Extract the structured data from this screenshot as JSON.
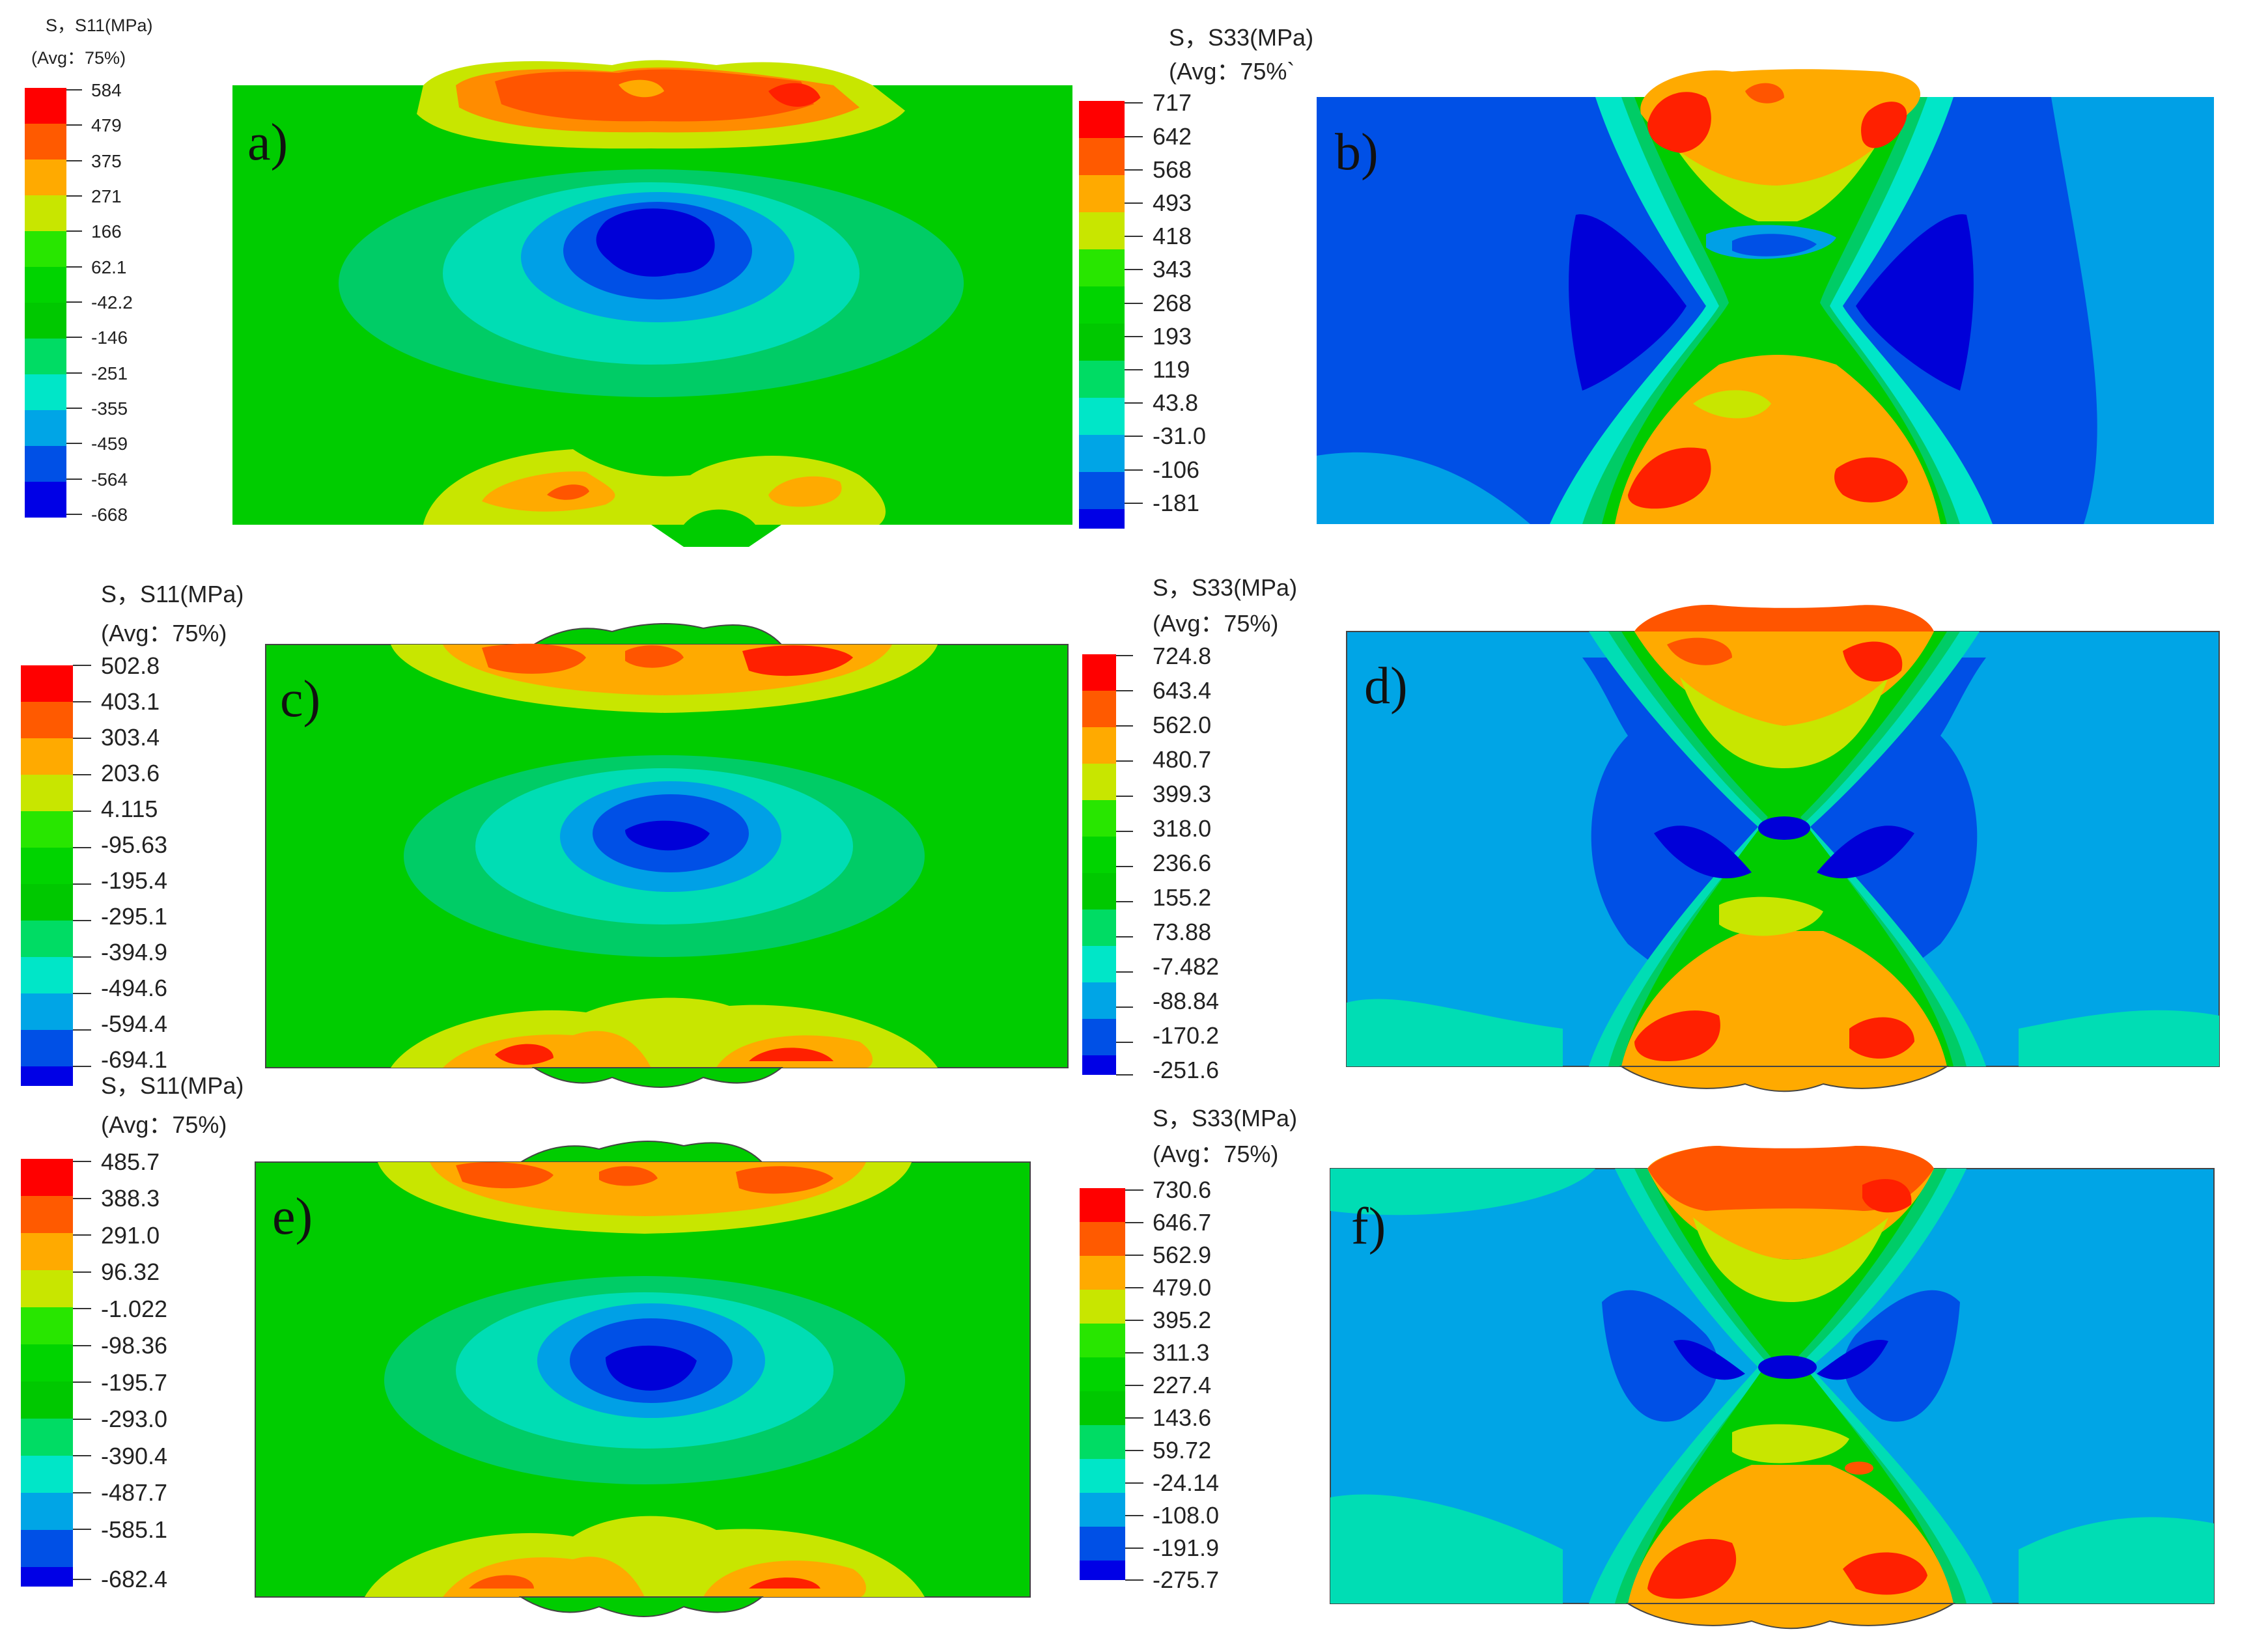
{
  "colors": {
    "red": "#FF0000",
    "orange_red": "#FF5A00",
    "orange": "#FFAA00",
    "yellow": "#C8E600",
    "green_bright": "#28E600",
    "green": "#00D400",
    "green_mid": "#00C800",
    "teal_green": "#00DC64",
    "cyan": "#00E6C8",
    "light_blue": "#00A5E6",
    "blue": "#0050E6",
    "deep_blue": "#0000E6"
  },
  "panels": [
    {
      "id": "a",
      "label": "a)",
      "legend_title": "S，S11(MPa)",
      "legend_avg": "(Avg：75%)",
      "legend_values": [
        "584",
        "479",
        "375",
        "271",
        "166",
        "62.1",
        "-42.2",
        "-146",
        "-251",
        "-355",
        "-459",
        "-564",
        "-668"
      ]
    },
    {
      "id": "b",
      "label": "b)",
      "legend_title": "S，S33(MPa)",
      "legend_avg": "(Avg：75%`",
      "legend_values": [
        "717",
        "642",
        "568",
        "493",
        "418",
        "343",
        "268",
        "193",
        "119",
        "43.8",
        "-31.0",
        "-106",
        "-181"
      ]
    },
    {
      "id": "c",
      "label": "c)",
      "legend_title": "S，S11(MPa)",
      "legend_avg": "(Avg：75%)",
      "legend_values": [
        "502.8",
        "403.1",
        "303.4",
        "203.6",
        "4.115",
        "-95.63",
        "-195.4",
        "-295.1",
        "-394.9",
        "-494.6",
        "-594.4",
        "-694.1"
      ]
    },
    {
      "id": "d",
      "label": "d)",
      "legend_title": "S，S33(MPa)",
      "legend_avg": "(Avg：75%)",
      "legend_values": [
        "724.8",
        "643.4",
        "562.0",
        "480.7",
        "399.3",
        "318.0",
        "236.6",
        "155.2",
        "73.88",
        "-7.482",
        "-88.84",
        "-170.2",
        "-251.6"
      ]
    },
    {
      "id": "e",
      "label": "e)",
      "legend_title": "S，S11(MPa)",
      "legend_avg": "(Avg：75%)",
      "legend_values": [
        "485.7",
        "388.3",
        "291.0",
        "96.32",
        "-1.022",
        "-98.36",
        "-195.7",
        "-293.0",
        "-390.4",
        "-487.7",
        "-585.1",
        "-682.4"
      ]
    },
    {
      "id": "f",
      "label": "f)",
      "legend_title": "S，S33(MPa)",
      "legend_avg": "(Avg：75%)",
      "legend_values": [
        "730.6",
        "646.7",
        "562.9",
        "479.0",
        "395.2",
        "311.3",
        "227.4",
        "143.6",
        "59.72",
        "-24.14",
        "-108.0",
        "-191.9",
        "-275.7"
      ]
    }
  ]
}
